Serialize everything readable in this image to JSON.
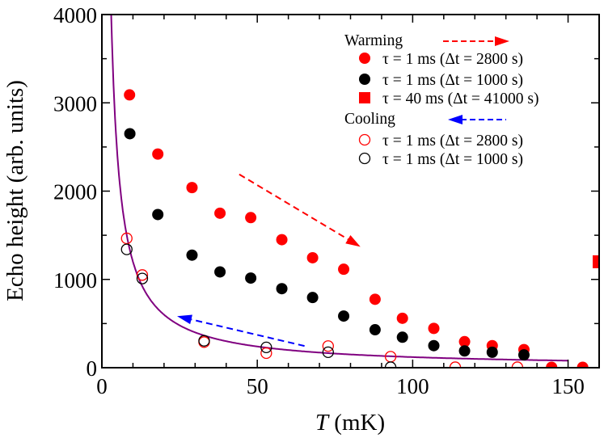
{
  "chart_data": {
    "type": "scatter",
    "xlabel_var": "T",
    "xlabel_unit": " (mK)",
    "ylabel": "Echo height (arb. units)",
    "xlim": [
      0,
      160
    ],
    "ylim": [
      0,
      4000
    ],
    "x_ticks": [
      "0",
      "50",
      "100",
      "150"
    ],
    "y_ticks": [
      "0",
      "1000",
      "2000",
      "3000",
      "4000"
    ],
    "grid": false,
    "legend_placement": "top-right",
    "legend": {
      "warming_title": "Warming",
      "cooling_title": "Cooling"
    },
    "series": [
      {
        "name": "τ = 1 ms (Δt = 2800 s)",
        "group": "warming",
        "marker": "filled-circle",
        "color": "#ff0000",
        "x": [
          8.9,
          18.0,
          29.0,
          38.0,
          47.9,
          57.9,
          67.8,
          77.8,
          87.9,
          96.7,
          106.8,
          116.7,
          125.6,
          135.8,
          144.7,
          154.7
        ],
        "y": [
          3090,
          2420,
          2040,
          1750,
          1700,
          1450,
          1245,
          1115,
          775,
          560,
          445,
          295,
          250,
          205,
          5,
          5
        ]
      },
      {
        "name": "τ = 1 ms (Δt = 1000 s)",
        "group": "warming",
        "marker": "filled-circle",
        "color": "#000000",
        "x": [
          9.0,
          18.0,
          29.0,
          38.0,
          47.9,
          57.9,
          67.8,
          77.8,
          87.9,
          96.7,
          106.8,
          116.7,
          125.6,
          135.8
        ],
        "y": [
          2650,
          1735,
          1275,
          1085,
          1015,
          895,
          795,
          585,
          430,
          345,
          250,
          190,
          175,
          145
        ]
      },
      {
        "name": "τ = 40 ms (Δt = 41000 s)",
        "group": "warming",
        "marker": "filled-square",
        "color": "#ff0000",
        "x": [
          160
        ],
        "y": [
          1200
        ]
      },
      {
        "name": "τ = 1 ms (Δt = 2800 s)",
        "group": "cooling",
        "marker": "open-circle",
        "color": "#ff0000",
        "x": [
          8.0,
          13.0,
          32.9,
          52.9,
          72.8,
          92.9,
          113.7,
          133.7
        ],
        "y": [
          1465,
          1050,
          290,
          165,
          245,
          125,
          5,
          5
        ]
      },
      {
        "name": "τ = 1 ms (Δt = 1000 s)",
        "group": "cooling",
        "marker": "open-circle",
        "color": "#000000",
        "x": [
          8.0,
          13.0,
          32.9,
          52.9,
          72.8,
          92.9
        ],
        "y": [
          1340,
          1010,
          305,
          230,
          175,
          5
        ]
      }
    ],
    "fit_curve": {
      "color": "#800080",
      "formula": "12000 / T",
      "x_range": [
        3,
        150
      ]
    },
    "annotations": [
      {
        "type": "dashed-arrow",
        "color": "#ff0000",
        "from": [
          44.2,
          2190
        ],
        "to": [
          83.2,
          1370
        ]
      },
      {
        "type": "dashed-arrow",
        "color": "#0000ff",
        "from": [
          65.2,
          246
        ],
        "to": [
          24.2,
          584
        ]
      }
    ]
  }
}
